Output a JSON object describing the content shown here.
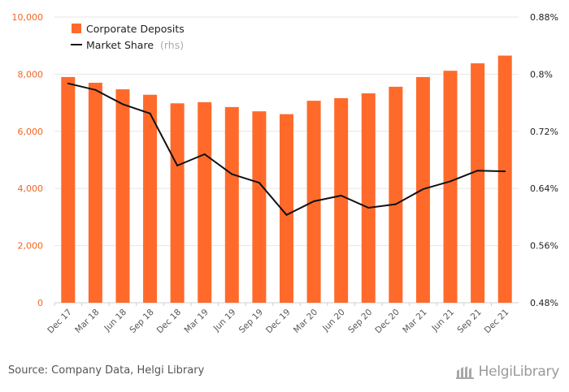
{
  "chart_data": {
    "type": "bar",
    "categories": [
      "Dec 17",
      "Mar 18",
      "Jun 18",
      "Sep 18",
      "Dec 18",
      "Mar 19",
      "Jun 19",
      "Sep 19",
      "Dec 19",
      "Mar 20",
      "Jun 20",
      "Sep 20",
      "Dec 20",
      "Mar 21",
      "Jun 21",
      "Sep 21",
      "Dec 21"
    ],
    "series": [
      {
        "name": "Corporate Deposits",
        "type": "bar",
        "axis": "left",
        "color": "#ff6a2b",
        "values": [
          7900,
          7700,
          7470,
          7280,
          6980,
          7020,
          6850,
          6700,
          6600,
          7070,
          7160,
          7330,
          7560,
          7900,
          8120,
          8380,
          8650
        ]
      },
      {
        "name": "Market Share",
        "name_suffix": "(rhs)",
        "type": "line",
        "axis": "right",
        "color": "#111111",
        "values": [
          0.787,
          0.778,
          0.758,
          0.745,
          0.672,
          0.688,
          0.66,
          0.648,
          0.603,
          0.622,
          0.63,
          0.613,
          0.618,
          0.639,
          0.65,
          0.665,
          0.664
        ]
      }
    ],
    "y_left": {
      "min": 0,
      "max": 10000,
      "ticks": [
        "0",
        "2,000",
        "4,000",
        "6,000",
        "8,000",
        "10,000"
      ]
    },
    "y_right": {
      "min": 0.48,
      "max": 0.88,
      "ticks": [
        "0.48%",
        "0.56%",
        "0.64%",
        "0.72%",
        "0.8%",
        "0.88%"
      ]
    },
    "grid": true,
    "legend": "top-left"
  },
  "footer": {
    "source": "Source: Company Data, Helgi Library",
    "logo_text": "HelgiLibrary"
  }
}
